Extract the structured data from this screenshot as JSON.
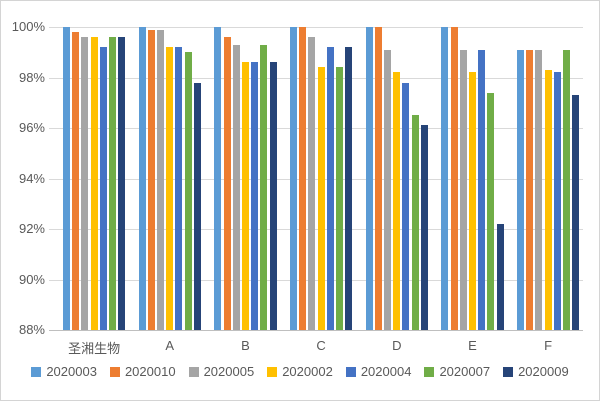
{
  "chart_data": {
    "type": "bar",
    "title": "",
    "xlabel": "",
    "ylabel": "",
    "categories": [
      "圣湘生物",
      "A",
      "B",
      "C",
      "D",
      "E",
      "F"
    ],
    "series": [
      {
        "name": "2020003",
        "color": "#5B9BD5",
        "values": [
          100.0,
          100.0,
          100.0,
          100.0,
          100.0,
          100.0,
          99.1
        ]
      },
      {
        "name": "2020010",
        "color": "#ED7D31",
        "values": [
          99.8,
          99.9,
          99.6,
          100.0,
          100.0,
          100.0,
          99.1
        ]
      },
      {
        "name": "2020005",
        "color": "#A5A5A5",
        "values": [
          99.6,
          99.9,
          99.3,
          99.6,
          99.1,
          99.1,
          99.1
        ]
      },
      {
        "name": "2020002",
        "color": "#FFC000",
        "values": [
          99.6,
          99.2,
          98.6,
          98.4,
          98.2,
          98.2,
          98.3
        ]
      },
      {
        "name": "2020004",
        "color": "#4472C4",
        "values": [
          99.2,
          99.2,
          98.6,
          99.2,
          97.8,
          99.1,
          98.2
        ]
      },
      {
        "name": "2020007",
        "color": "#70AD47",
        "values": [
          99.6,
          99.0,
          99.3,
          98.4,
          96.5,
          97.4,
          99.1
        ]
      },
      {
        "name": "2020009",
        "color": "#264478",
        "values": [
          99.6,
          97.8,
          98.6,
          99.2,
          96.1,
          92.2,
          97.3
        ]
      }
    ],
    "ylim": [
      88,
      100
    ],
    "ytick_step": 2,
    "ytick_labels": [
      "100%",
      "98%",
      "96%",
      "94%",
      "92%",
      "90%",
      "88%"
    ],
    "grid": true,
    "legend_position": "bottom",
    "bar_baseline": 88
  }
}
